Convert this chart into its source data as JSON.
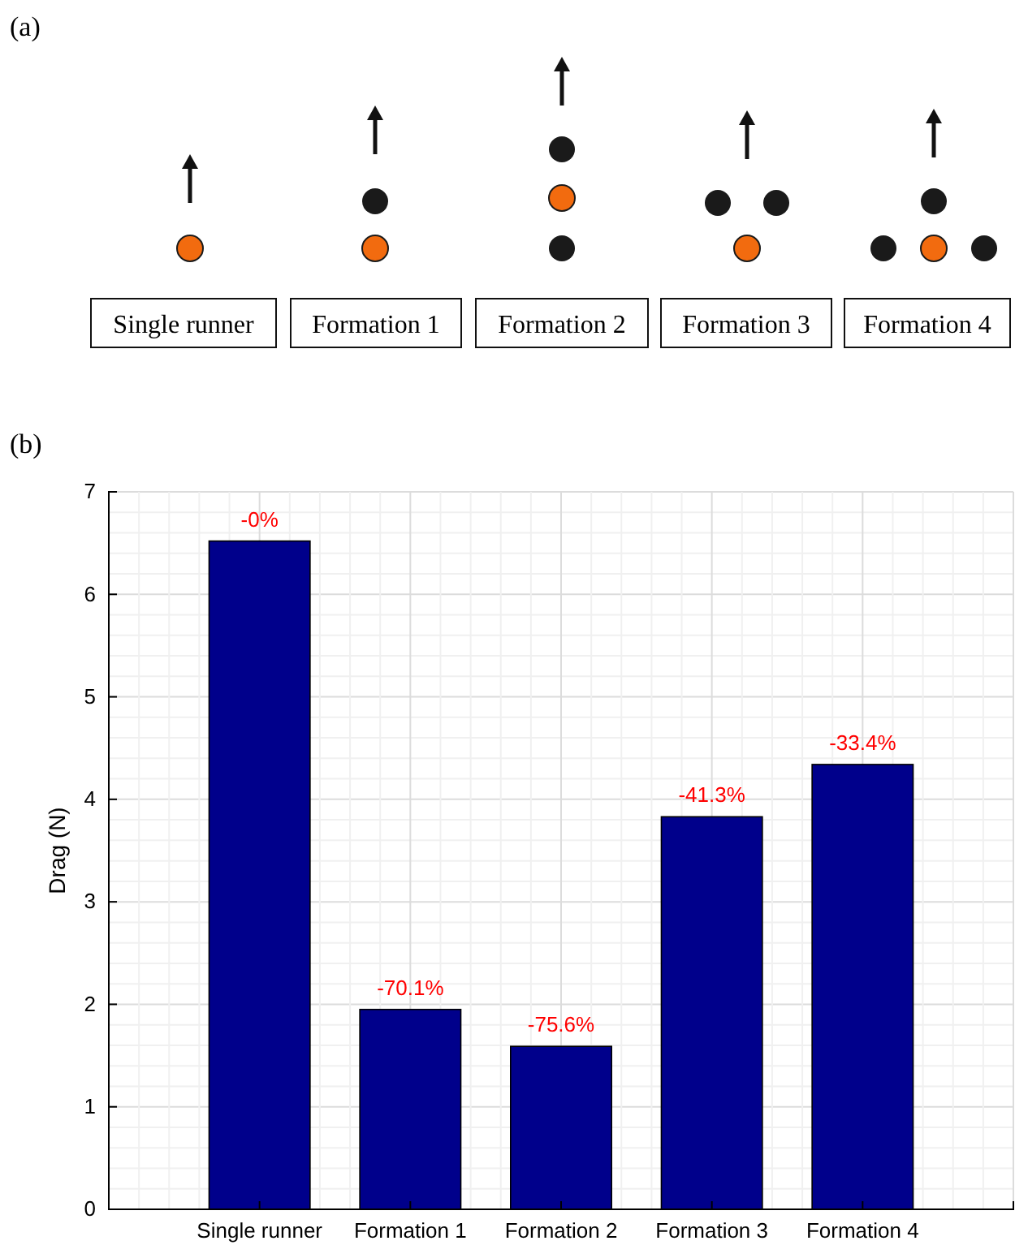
{
  "chart_data": [
    {
      "type": "other",
      "title": "(a)",
      "annotations": [
        "Single runner",
        "Formation 1",
        "Formation 2",
        "Formation 3",
        "Formation 4"
      ]
    },
    {
      "type": "bar",
      "title": "(b)",
      "ylabel": "Drag (N)",
      "categories": [
        "Single runner",
        "Formation 1",
        "Formation 2",
        "Formation 3",
        "Formation 4"
      ],
      "values": [
        6.52,
        1.95,
        1.59,
        3.83,
        4.34
      ],
      "annotations": [
        {
          "text": "-0%",
          "x": "Single runner",
          "y": 6.52
        },
        {
          "text": "-70.1%",
          "x": "Formation 1",
          "y": 1.95
        },
        {
          "text": "-75.6%",
          "x": "Formation 2",
          "y": 1.59
        },
        {
          "text": "-41.3%",
          "x": "Formation 3",
          "y": 3.83
        },
        {
          "text": "-33.4%",
          "x": "Formation 4",
          "y": 4.34
        }
      ],
      "color": "#00008b",
      "ylim": [
        0,
        7
      ],
      "yticks": [
        0,
        1,
        2,
        3,
        4,
        5,
        6,
        7
      ],
      "grid": true
    }
  ]
}
